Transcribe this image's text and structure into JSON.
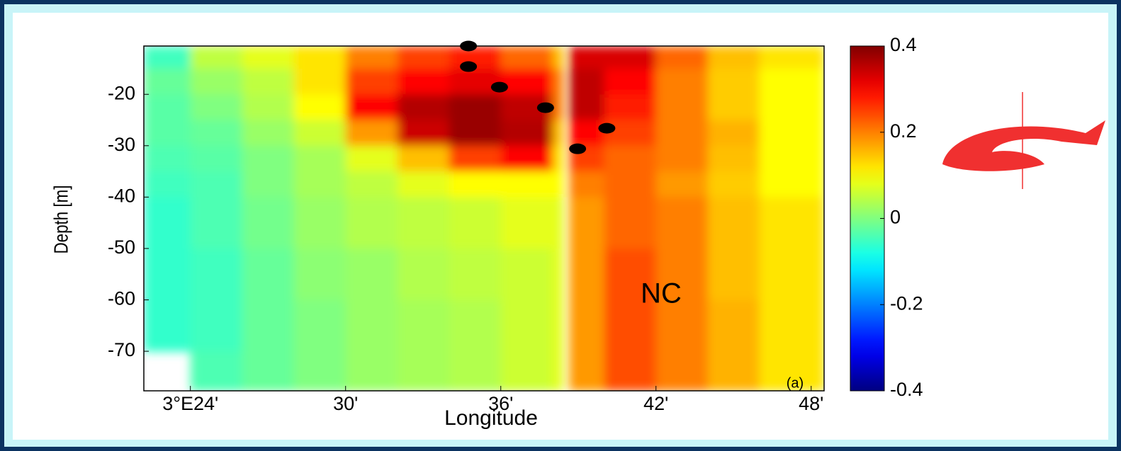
{
  "chart_data": {
    "type": "heatmap",
    "xlabel": "Longitude",
    "ylabel": "Depth [m]",
    "colormap": "jet",
    "clim": [
      -0.4,
      0.4
    ],
    "cticks": [
      0.4,
      0.2,
      0,
      -0.2,
      -0.4
    ],
    "xlim": [
      22.2,
      48.5
    ],
    "ylim": [
      -77.7,
      -10.6
    ],
    "xticks": [
      {
        "value": 24,
        "label": "3°E24'"
      },
      {
        "value": 30,
        "label": "30'"
      },
      {
        "value": 36,
        "label": "36'"
      },
      {
        "value": 42,
        "label": "42'"
      },
      {
        "value": 48,
        "label": "48'"
      }
    ],
    "yticks": [
      -20,
      -30,
      -40,
      -50,
      -60,
      -70
    ],
    "x_edges": [
      22.2,
      24,
      26,
      28,
      30,
      32,
      34,
      36,
      38,
      38.4,
      38.65,
      40,
      42,
      44,
      46,
      48.5
    ],
    "y_edges": [
      -10.6,
      -15,
      -20,
      -25,
      -30,
      -35,
      -40,
      -50,
      -60,
      -70,
      -77.7
    ],
    "values": [
      [
        -0.05,
        0.05,
        0.08,
        0.12,
        0.2,
        0.25,
        0.28,
        0.22,
        0.15,
        null,
        0.33,
        0.33,
        0.22,
        0.15,
        0.12
      ],
      [
        -0.02,
        0.02,
        0.05,
        0.12,
        0.25,
        0.3,
        0.32,
        0.3,
        0.2,
        null,
        0.35,
        0.3,
        0.2,
        0.14,
        0.1
      ],
      [
        -0.03,
        0,
        0.04,
        0.1,
        0.3,
        0.36,
        0.38,
        0.35,
        0.2,
        null,
        0.35,
        0.28,
        0.2,
        0.14,
        0.1
      ],
      [
        -0.03,
        -0.02,
        0.02,
        0.06,
        0.18,
        0.34,
        0.38,
        0.36,
        0.15,
        null,
        0.3,
        0.25,
        0.2,
        0.16,
        0.1
      ],
      [
        -0.04,
        -0.03,
        0,
        0.03,
        0.08,
        0.15,
        0.25,
        0.3,
        0.12,
        null,
        0.25,
        0.22,
        0.2,
        0.15,
        0.1
      ],
      [
        -0.05,
        -0.04,
        0,
        0.03,
        0.05,
        0.08,
        0.1,
        0.1,
        0.1,
        null,
        0.2,
        0.22,
        0.18,
        0.14,
        0.1
      ],
      [
        -0.06,
        -0.04,
        -0.01,
        0.02,
        0.04,
        0.05,
        0.06,
        0.08,
        0.08,
        null,
        0.18,
        0.22,
        0.2,
        0.15,
        0.12
      ],
      [
        -0.06,
        -0.05,
        -0.02,
        0.01,
        0.02,
        0.04,
        0.05,
        0.06,
        0.08,
        null,
        0.18,
        0.24,
        0.2,
        0.15,
        0.12
      ],
      [
        -0.06,
        -0.05,
        -0.02,
        0,
        0.02,
        0.03,
        0.04,
        0.06,
        0.08,
        null,
        0.18,
        0.24,
        0.2,
        0.16,
        0.12
      ],
      [
        null,
        -0.04,
        -0.02,
        0,
        0.02,
        0.03,
        0.04,
        0.06,
        0.08,
        null,
        0.18,
        0.24,
        0.2,
        0.16,
        0.12
      ]
    ],
    "markers": {
      "color": "#000000",
      "x": [
        34.75,
        34.75,
        35.95,
        37.73,
        38.97,
        40.1
      ],
      "y": [
        -10.6,
        -14.6,
        -18.6,
        -22.6,
        -30.6,
        -26.6
      ]
    },
    "annotations": [
      "NC",
      "(a)"
    ]
  }
}
